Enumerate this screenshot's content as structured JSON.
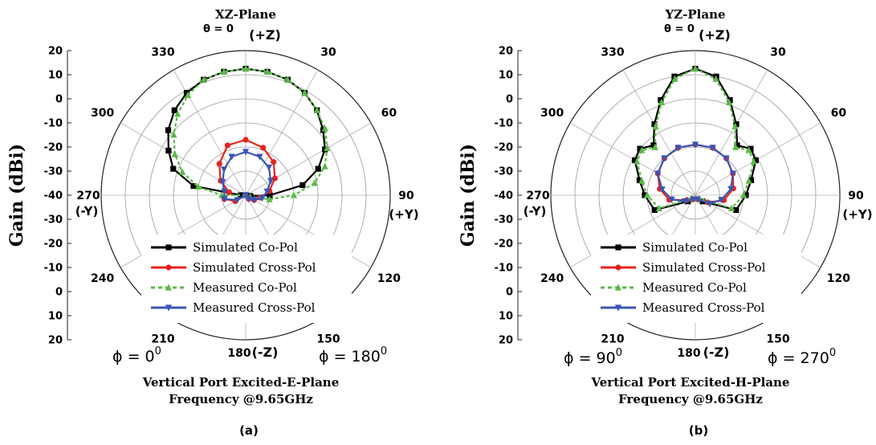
{
  "panels": [
    {
      "plane_title": "XZ-Plane",
      "theta_label": "θ = 0",
      "top_dir": "(+Z)",
      "bottom_dir": "(-Z)",
      "left_dir": "(-Y)",
      "right_dir": "(+Y)",
      "ylabel": "Gain (dBi)",
      "phi_left": "ϕ = 0",
      "phi_left_sup": "0",
      "phi_right": "ϕ = 180",
      "phi_right_sup": "0",
      "caption_line1": "Vertical Port Excited-E-Plane",
      "caption_line2": "Frequency @9.65GHz",
      "panel_label": "(a)"
    },
    {
      "plane_title": "YZ-Plane",
      "theta_label": "θ = 0",
      "top_dir": "(+Z)",
      "bottom_dir": "(-Z)",
      "left_dir": "(-Y)",
      "right_dir": "(+Y)",
      "ylabel": "Gain (dBi)",
      "phi_left": "ϕ = 90",
      "phi_left_sup": "0",
      "phi_right": "ϕ = 270",
      "phi_right_sup": "0",
      "caption_line1": "Vertical Port Excited-H-Plane",
      "caption_line2": "Frequency @9.65GHz",
      "panel_label": "(b)"
    }
  ],
  "chart_data": [
    {
      "type": "polar-line",
      "title": "XZ-Plane",
      "rlim": [
        -40,
        20
      ],
      "r_ticks": [
        20,
        10,
        0,
        -10,
        -20,
        -30,
        -40,
        -30,
        -20,
        -10,
        0,
        10,
        20
      ],
      "angle_ticks": [
        "0",
        "30",
        "60",
        "90",
        "120",
        "150",
        "180",
        "210",
        "240",
        "270",
        "300",
        "330"
      ],
      "legend": [
        "Simulated Co-Pol",
        "Simulated Cross-Pol",
        "Measured Co-Pol",
        "Measured Cross-Pol"
      ],
      "legend_position": "bottom-center",
      "series": [
        {
          "name": "Simulated Co-Pol",
          "color": "#000000",
          "marker": "square",
          "theta": [
            -90,
            -80,
            -70,
            -60,
            -50,
            -40,
            -30,
            -20,
            -10,
            0,
            10,
            20,
            30,
            40,
            50,
            60,
            70,
            80,
            90,
            100,
            110
          ],
          "gain": [
            -38,
            -18,
            -8,
            -3,
            2,
            6,
            9,
            11,
            12,
            12.5,
            12,
            11,
            9,
            6,
            2,
            -2,
            -8,
            -16,
            -30,
            -38,
            -40
          ]
        },
        {
          "name": "Simulated Cross-Pol",
          "color": "#e8231d",
          "marker": "circle",
          "theta": [
            -140,
            -120,
            -100,
            -80,
            -60,
            -40,
            -20,
            0,
            20,
            40,
            60,
            80,
            100,
            120,
            140,
            160,
            180
          ],
          "gain": [
            -40,
            -35,
            -31,
            -33,
            -28,
            -23,
            -18,
            -17,
            -19,
            -22,
            -26,
            -30,
            -34,
            -36,
            -38,
            -40,
            -40
          ]
        },
        {
          "name": "Measured Co-Pol",
          "color": "#5ab947",
          "marker": "triangle-up",
          "theta": [
            -100,
            -90,
            -80,
            -70,
            -60,
            -50,
            -40,
            -30,
            -20,
            -10,
            0,
            10,
            20,
            30,
            40,
            50,
            60,
            70,
            80,
            90,
            100,
            110
          ],
          "gain": [
            -40,
            -30,
            -20,
            -12,
            -6,
            -1,
            4,
            8,
            11,
            12,
            12.5,
            12,
            11,
            9,
            6,
            3,
            -1,
            -5,
            -11,
            -20,
            -30,
            -38
          ]
        },
        {
          "name": "Measured Cross-Pol",
          "color": "#3a55b4",
          "marker": "triangle-down",
          "theta": [
            -140,
            -120,
            -100,
            -80,
            -60,
            -40,
            -20,
            0,
            20,
            40,
            60,
            80,
            100,
            120,
            140,
            160
          ],
          "gain": [
            -40,
            -36,
            -31,
            -31,
            -29,
            -26,
            -23,
            -22,
            -23,
            -25,
            -28,
            -31,
            -33,
            -36,
            -38,
            -40
          ]
        }
      ]
    },
    {
      "type": "polar-line",
      "title": "YZ-Plane",
      "rlim": [
        -40,
        20
      ],
      "r_ticks": [
        20,
        10,
        0,
        -10,
        -20,
        -30,
        -40,
        -30,
        -20,
        -10,
        0,
        10,
        20
      ],
      "angle_ticks": [
        "0",
        "30",
        "60",
        "90",
        "120",
        "150",
        "180",
        "210",
        "240",
        "270",
        "300",
        "330"
      ],
      "legend": [
        "Simulated Co-Pol",
        "Simulated Cross-Pol",
        "Measured Co-Pol",
        "Measured Cross-Pol"
      ],
      "legend_position": "bottom-center",
      "series": [
        {
          "name": "Simulated Co-Pol",
          "color": "#000000",
          "marker": "square",
          "theta": [
            -130,
            -110,
            -90,
            -75,
            -60,
            -50,
            -40,
            -30,
            -20,
            -10,
            0,
            10,
            20,
            30,
            40,
            50,
            60,
            75,
            90,
            110,
            130
          ],
          "gain": [
            -36,
            -22,
            -19,
            -16,
            -11,
            -10,
            -13,
            -6,
            2,
            10,
            12.5,
            10,
            2,
            -6,
            -13,
            -10,
            -11,
            -16,
            -19,
            -22,
            -36
          ]
        },
        {
          "name": "Simulated Cross-Pol",
          "color": "#e8231d",
          "marker": "circle",
          "theta": [
            -150,
            -120,
            -100,
            -80,
            -60,
            -40,
            -20,
            0,
            20,
            40,
            60,
            80,
            100,
            120,
            150
          ],
          "gain": [
            -38,
            -36,
            -29,
            -25,
            -22,
            -20,
            -19,
            -19,
            -19,
            -20,
            -22,
            -24,
            -28,
            -34,
            -38
          ]
        },
        {
          "name": "Measured Co-Pol",
          "color": "#5ab947",
          "marker": "triangle-up",
          "theta": [
            -130,
            -110,
            -90,
            -75,
            -60,
            -50,
            -40,
            -30,
            -20,
            -10,
            0,
            10,
            20,
            30,
            40,
            50,
            60,
            75,
            90,
            110,
            130
          ],
          "gain": [
            -38,
            -24,
            -20,
            -17,
            -12,
            -11,
            -14,
            -7,
            1,
            9,
            12.5,
            9,
            1,
            -7,
            -14,
            -11,
            -12,
            -17,
            -20,
            -24,
            -38
          ]
        },
        {
          "name": "Measured Cross-Pol",
          "color": "#3a55b4",
          "marker": "triangle-down",
          "theta": [
            -150,
            -120,
            -100,
            -80,
            -60,
            -40,
            -20,
            0,
            20,
            40,
            60,
            80,
            100,
            120,
            150
          ],
          "gain": [
            -38,
            -35,
            -30,
            -26,
            -22,
            -20,
            -19,
            -19,
            -19,
            -20,
            -22,
            -25,
            -29,
            -33,
            -38
          ]
        }
      ]
    }
  ]
}
